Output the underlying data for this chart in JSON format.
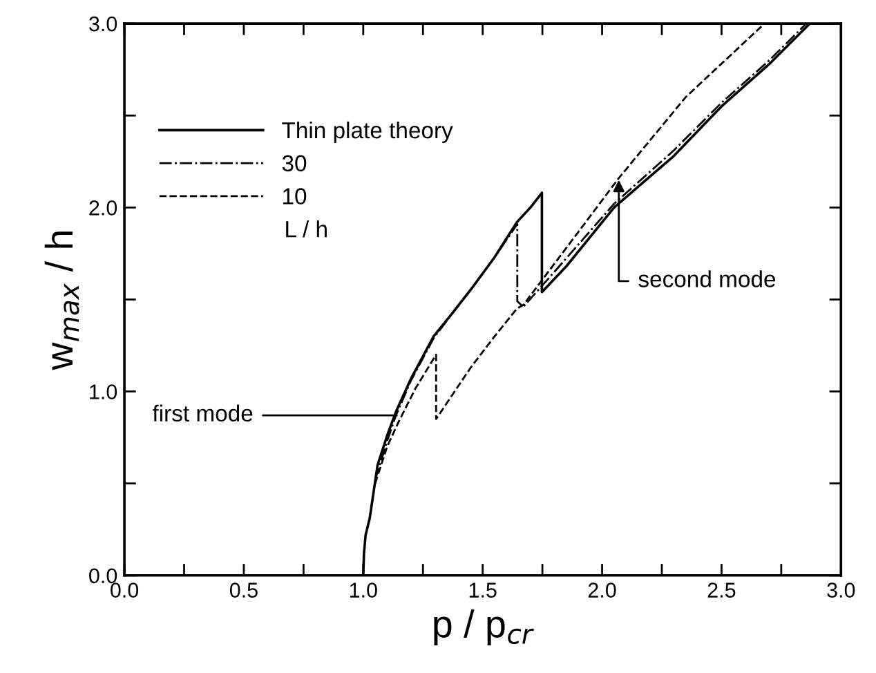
{
  "chart_data": {
    "type": "line",
    "xlabel": "p / p$_{cr}$",
    "ylabel": "w$_{max}$ / h",
    "legend_title": "L / h",
    "series": [
      {
        "name": "Thin plate theory",
        "color": "#000000",
        "line_style": "solid",
        "x": [
          1.0,
          1.003,
          1.01,
          1.027,
          1.06,
          1.1,
          1.137,
          1.2,
          1.295,
          1.37,
          1.454,
          1.55,
          1.643,
          1.7,
          1.748,
          1.748,
          1.85,
          2.05,
          2.3,
          2.5,
          2.7,
          2.87
        ],
        "values": [
          0.0,
          0.12,
          0.22,
          0.31,
          0.6,
          0.76,
          0.89,
          1.07,
          1.3,
          1.42,
          1.56,
          1.73,
          1.92,
          2.0,
          2.08,
          1.54,
          1.68,
          2.0,
          2.28,
          2.55,
          2.78,
          3.0
        ]
      },
      {
        "name": "30",
        "color": "#000000",
        "line_style": "dashdot",
        "x": [
          1.05,
          1.1,
          1.137,
          1.2,
          1.295,
          1.37,
          1.454,
          1.55,
          1.645,
          1.645,
          1.67,
          1.8,
          2.05,
          2.3,
          2.5,
          2.7,
          2.855
        ],
        "values": [
          0.52,
          0.73,
          0.87,
          1.06,
          1.29,
          1.42,
          1.56,
          1.73,
          1.91,
          1.49,
          1.46,
          1.65,
          2.02,
          2.31,
          2.57,
          2.8,
          3.0
        ]
      },
      {
        "name": "10",
        "color": "#000000",
        "line_style": "dashed",
        "x": [
          1.05,
          1.1,
          1.15,
          1.22,
          1.305,
          1.305,
          1.45,
          1.55,
          1.643,
          1.67,
          1.85,
          2.07,
          2.35,
          2.68
        ],
        "values": [
          0.5,
          0.7,
          0.84,
          1.02,
          1.2,
          0.85,
          1.13,
          1.3,
          1.45,
          1.47,
          1.78,
          2.16,
          2.6,
          3.0
        ]
      }
    ],
    "xlim": [
      0.0,
      3.0
    ],
    "ylim": [
      0.0,
      3.0
    ],
    "xticks": [
      {
        "value": 0.0,
        "label": "0.0"
      },
      {
        "value": 0.25,
        "label": null
      },
      {
        "value": 0.5,
        "label": "0.5"
      },
      {
        "value": 0.75,
        "label": null
      },
      {
        "value": 1.0,
        "label": "1.0"
      },
      {
        "value": 1.25,
        "label": null
      },
      {
        "value": 1.5,
        "label": "1.5"
      },
      {
        "value": 1.75,
        "label": null
      },
      {
        "value": 2.0,
        "label": "2.0"
      },
      {
        "value": 2.25,
        "label": null
      },
      {
        "value": 2.5,
        "label": "2.5"
      },
      {
        "value": 2.75,
        "label": null
      },
      {
        "value": 3.0,
        "label": "3.0"
      }
    ],
    "yticks": [
      {
        "value": 0.0,
        "label": "0.0"
      },
      {
        "value": 0.5,
        "label": null
      },
      {
        "value": 1.0,
        "label": "1.0"
      },
      {
        "value": 1.5,
        "label": null
      },
      {
        "value": 2.0,
        "label": "2.0"
      },
      {
        "value": 2.5,
        "label": null
      },
      {
        "value": 3.0,
        "label": "3.0"
      }
    ],
    "annotations": [
      {
        "text": "first mode",
        "x": 1.14,
        "y": 0.87
      },
      {
        "text": "second mode",
        "x": 2.07,
        "y": 2.15
      }
    ],
    "grid": false,
    "legend": "top left",
    "marker": "none"
  }
}
